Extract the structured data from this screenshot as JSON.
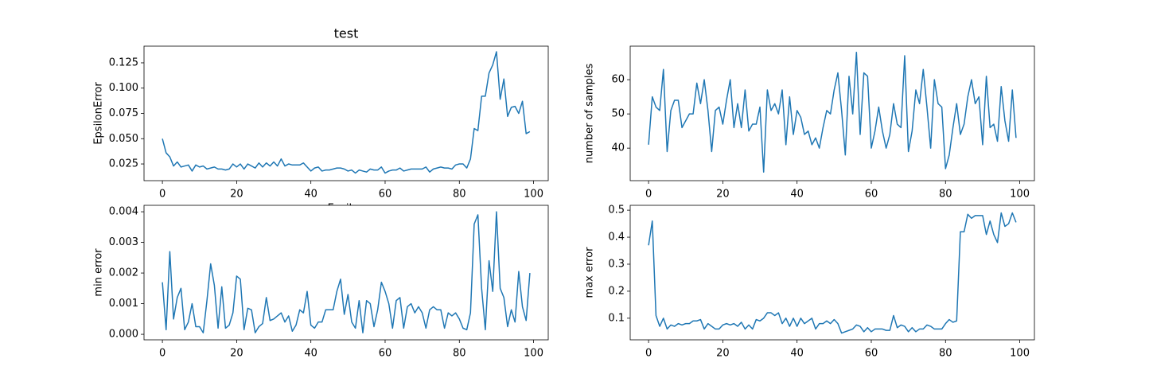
{
  "chart_data": [
    {
      "type": "line",
      "title": "test",
      "xlabel": "Epsilon",
      "ylabel": "EpsilonError",
      "x": [
        0,
        1,
        2,
        3,
        4,
        5,
        6,
        7,
        8,
        9,
        10,
        11,
        12,
        13,
        14,
        15,
        16,
        17,
        18,
        19,
        20,
        21,
        22,
        23,
        24,
        25,
        26,
        27,
        28,
        29,
        30,
        31,
        32,
        33,
        34,
        35,
        36,
        37,
        38,
        39,
        40,
        41,
        42,
        43,
        44,
        45,
        46,
        47,
        48,
        49,
        50,
        51,
        52,
        53,
        54,
        55,
        56,
        57,
        58,
        59,
        60,
        61,
        62,
        63,
        64,
        65,
        66,
        67,
        68,
        69,
        70,
        71,
        72,
        73,
        74,
        75,
        76,
        77,
        78,
        79,
        80,
        81,
        82,
        83,
        84,
        85,
        86,
        87,
        88,
        89,
        90,
        91,
        92,
        93,
        94,
        95,
        96,
        97,
        98,
        99
      ],
      "color": "#1f77b4",
      "values": [
        0.05,
        0.036,
        0.032,
        0.023,
        0.027,
        0.022,
        0.023,
        0.024,
        0.018,
        0.024,
        0.022,
        0.023,
        0.02,
        0.021,
        0.022,
        0.02,
        0.02,
        0.019,
        0.02,
        0.025,
        0.022,
        0.025,
        0.02,
        0.025,
        0.023,
        0.021,
        0.026,
        0.022,
        0.026,
        0.023,
        0.027,
        0.023,
        0.03,
        0.023,
        0.025,
        0.024,
        0.024,
        0.024,
        0.026,
        0.022,
        0.018,
        0.021,
        0.022,
        0.018,
        0.019,
        0.019,
        0.02,
        0.021,
        0.021,
        0.02,
        0.018,
        0.019,
        0.016,
        0.019,
        0.018,
        0.017,
        0.02,
        0.019,
        0.019,
        0.022,
        0.016,
        0.018,
        0.019,
        0.019,
        0.021,
        0.018,
        0.019,
        0.02,
        0.02,
        0.02,
        0.02,
        0.022,
        0.017,
        0.02,
        0.021,
        0.022,
        0.021,
        0.021,
        0.02,
        0.024,
        0.025,
        0.025,
        0.021,
        0.03,
        0.06,
        0.058,
        0.092,
        0.092,
        0.115,
        0.123,
        0.136,
        0.089,
        0.109,
        0.072,
        0.081,
        0.082,
        0.075,
        0.087,
        0.055,
        0.057
      ],
      "xlim": [
        -4.95,
        103.95
      ],
      "xticks": [
        0,
        20,
        40,
        60,
        80,
        100
      ],
      "ylim": [
        0.0085,
        0.1415
      ],
      "yticks": [
        {
          "value": 0.025,
          "label": "0.025"
        },
        {
          "value": 0.05,
          "label": "0.050"
        },
        {
          "value": 0.075,
          "label": "0.075"
        },
        {
          "value": 0.1,
          "label": "0.100"
        },
        {
          "value": 0.125,
          "label": "0.125"
        }
      ]
    },
    {
      "type": "line",
      "ylabel": "number of samples",
      "x": [
        0,
        1,
        2,
        3,
        4,
        5,
        6,
        7,
        8,
        9,
        10,
        11,
        12,
        13,
        14,
        15,
        16,
        17,
        18,
        19,
        20,
        21,
        22,
        23,
        24,
        25,
        26,
        27,
        28,
        29,
        30,
        31,
        32,
        33,
        34,
        35,
        36,
        37,
        38,
        39,
        40,
        41,
        42,
        43,
        44,
        45,
        46,
        47,
        48,
        49,
        50,
        51,
        52,
        53,
        54,
        55,
        56,
        57,
        58,
        59,
        60,
        61,
        62,
        63,
        64,
        65,
        66,
        67,
        68,
        69,
        70,
        71,
        72,
        73,
        74,
        75,
        76,
        77,
        78,
        79,
        80,
        81,
        82,
        83,
        84,
        85,
        86,
        87,
        88,
        89,
        90,
        91,
        92,
        93,
        94,
        95,
        96,
        97,
        98,
        99
      ],
      "color": "#1f77b4",
      "values": [
        41,
        55,
        52,
        51,
        63,
        39,
        51,
        54,
        54,
        46,
        48,
        50,
        50,
        59,
        53,
        60,
        51,
        39,
        51,
        52,
        47,
        54,
        60,
        46,
        53,
        46,
        57,
        45,
        47,
        47,
        52,
        33,
        57,
        51,
        53,
        50,
        57,
        41,
        55,
        44,
        51,
        49,
        44,
        45,
        41,
        43,
        40,
        46,
        51,
        50,
        57,
        62,
        51,
        38,
        61,
        50,
        68,
        44,
        62,
        61,
        40,
        45,
        52,
        45,
        40,
        44,
        53,
        47,
        46,
        67,
        39,
        45,
        57,
        53,
        63,
        52,
        40,
        60,
        53,
        52,
        34,
        38,
        46,
        53,
        44,
        47,
        55,
        60,
        53,
        55,
        41,
        61,
        46,
        47,
        42,
        58,
        48,
        42,
        57,
        43
      ],
      "xlim": [
        -4.95,
        103.95
      ],
      "xticks": [
        0,
        20,
        40,
        60,
        80,
        100
      ],
      "ylim": [
        30.5,
        69.8
      ],
      "yticks": [
        40,
        50,
        60
      ]
    },
    {
      "type": "line",
      "ylabel": "min error",
      "x": [
        0,
        1,
        2,
        3,
        4,
        5,
        6,
        7,
        8,
        9,
        10,
        11,
        12,
        13,
        14,
        15,
        16,
        17,
        18,
        19,
        20,
        21,
        22,
        23,
        24,
        25,
        26,
        27,
        28,
        29,
        30,
        31,
        32,
        33,
        34,
        35,
        36,
        37,
        38,
        39,
        40,
        41,
        42,
        43,
        44,
        45,
        46,
        47,
        48,
        49,
        50,
        51,
        52,
        53,
        54,
        55,
        56,
        57,
        58,
        59,
        60,
        61,
        62,
        63,
        64,
        65,
        66,
        67,
        68,
        69,
        70,
        71,
        72,
        73,
        74,
        75,
        76,
        77,
        78,
        79,
        80,
        81,
        82,
        83,
        84,
        85,
        86,
        87,
        88,
        89,
        90,
        91,
        92,
        93,
        94,
        95,
        96,
        97,
        98,
        99
      ],
      "color": "#1f77b4",
      "values": [
        0.0017,
        0.00015,
        0.0027,
        0.0005,
        0.0012,
        0.0015,
        0.00015,
        0.0004,
        0.001,
        0.00025,
        0.00025,
        5e-05,
        0.0011,
        0.0023,
        0.0016,
        0.0002,
        0.00155,
        0.0002,
        0.0003,
        0.0007,
        0.0019,
        0.0018,
        0.00015,
        0.00085,
        0.0008,
        5e-05,
        0.00025,
        0.00035,
        0.0012,
        0.00045,
        0.0005,
        0.0006,
        0.0007,
        0.0004,
        0.0006,
        0.0001,
        0.0003,
        0.0008,
        0.0007,
        0.0014,
        0.0003,
        0.0002,
        0.0004,
        0.0004,
        0.0008,
        0.0008,
        0.0008,
        0.0014,
        0.0018,
        0.00065,
        0.0013,
        0.0004,
        0.0002,
        0.0011,
        5e-05,
        0.0011,
        0.001,
        0.00025,
        0.0008,
        0.0017,
        0.0014,
        0.001,
        0.0002,
        0.0011,
        0.0012,
        0.0002,
        0.0009,
        0.001,
        0.0007,
        0.0009,
        0.0007,
        0.0002,
        0.0008,
        0.0009,
        0.0008,
        0.0008,
        0.0002,
        0.0007,
        0.0006,
        0.0007,
        0.0005,
        0.0002,
        0.00015,
        0.0007,
        0.0036,
        0.0039,
        0.0015,
        0.00015,
        0.0024,
        0.0014,
        0.004,
        0.0015,
        0.0012,
        0.00025,
        0.0008,
        0.0004,
        0.00205,
        0.0009,
        0.00045,
        0.002
      ],
      "xlim": [
        -4.95,
        103.95
      ],
      "xticks": [
        0,
        20,
        40,
        60,
        80,
        100
      ],
      "ylim": [
        -0.00018,
        0.00421
      ],
      "yticks": [
        {
          "value": 0,
          "label": "0.000"
        },
        {
          "value": 0.001,
          "label": "0.001"
        },
        {
          "value": 0.002,
          "label": "0.002"
        },
        {
          "value": 0.003,
          "label": "0.003"
        },
        {
          "value": 0.004,
          "label": "0.004"
        }
      ]
    },
    {
      "type": "line",
      "ylabel": "max error",
      "x": [
        0,
        1,
        2,
        3,
        4,
        5,
        6,
        7,
        8,
        9,
        10,
        11,
        12,
        13,
        14,
        15,
        16,
        17,
        18,
        19,
        20,
        21,
        22,
        23,
        24,
        25,
        26,
        27,
        28,
        29,
        30,
        31,
        32,
        33,
        34,
        35,
        36,
        37,
        38,
        39,
        40,
        41,
        42,
        43,
        44,
        45,
        46,
        47,
        48,
        49,
        50,
        51,
        52,
        53,
        54,
        55,
        56,
        57,
        58,
        59,
        60,
        61,
        62,
        63,
        64,
        65,
        66,
        67,
        68,
        69,
        70,
        71,
        72,
        73,
        74,
        75,
        76,
        77,
        78,
        79,
        80,
        81,
        82,
        83,
        84,
        85,
        86,
        87,
        88,
        89,
        90,
        91,
        92,
        93,
        94,
        95,
        96,
        97,
        98,
        99
      ],
      "color": "#1f77b4",
      "values": [
        0.37,
        0.46,
        0.11,
        0.07,
        0.1,
        0.06,
        0.075,
        0.07,
        0.08,
        0.075,
        0.08,
        0.08,
        0.09,
        0.09,
        0.095,
        0.06,
        0.08,
        0.07,
        0.06,
        0.06,
        0.075,
        0.08,
        0.075,
        0.08,
        0.07,
        0.085,
        0.06,
        0.075,
        0.06,
        0.095,
        0.09,
        0.1,
        0.12,
        0.12,
        0.11,
        0.12,
        0.08,
        0.1,
        0.07,
        0.1,
        0.07,
        0.1,
        0.08,
        0.09,
        0.1,
        0.06,
        0.08,
        0.08,
        0.09,
        0.08,
        0.095,
        0.08,
        0.045,
        0.05,
        0.055,
        0.06,
        0.075,
        0.07,
        0.05,
        0.065,
        0.05,
        0.06,
        0.06,
        0.06,
        0.055,
        0.055,
        0.11,
        0.065,
        0.075,
        0.07,
        0.05,
        0.065,
        0.05,
        0.06,
        0.06,
        0.075,
        0.07,
        0.06,
        0.06,
        0.06,
        0.08,
        0.095,
        0.085,
        0.09,
        0.42,
        0.42,
        0.485,
        0.47,
        0.48,
        0.48,
        0.48,
        0.41,
        0.46,
        0.41,
        0.38,
        0.49,
        0.44,
        0.45,
        0.49,
        0.455
      ],
      "xlim": [
        -4.95,
        103.95
      ],
      "xticks": [
        0,
        20,
        40,
        60,
        80,
        100
      ],
      "ylim": [
        0.02,
        0.518
      ],
      "yticks": [
        0.1,
        0.2,
        0.3,
        0.4,
        0.5
      ]
    }
  ]
}
